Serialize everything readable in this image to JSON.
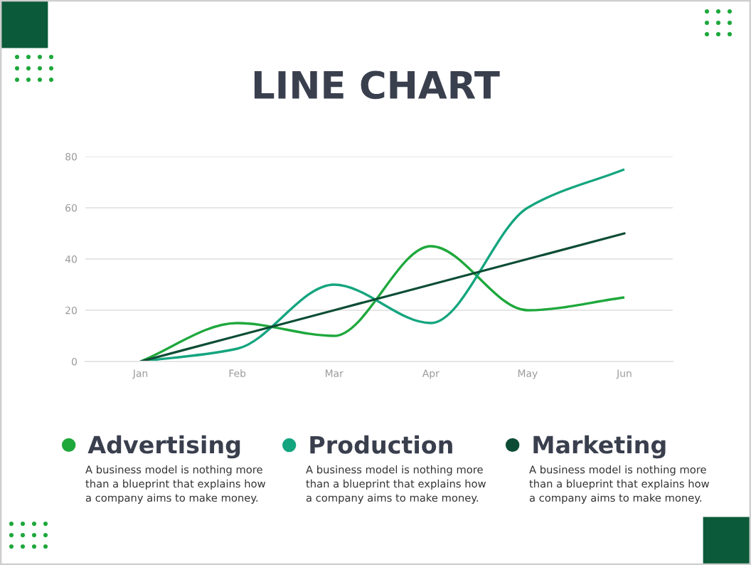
{
  "chart_data": {
    "type": "line",
    "title": "LINE CHART",
    "categories": [
      "Jan",
      "Feb",
      "Mar",
      "Apr",
      "May",
      "Jun"
    ],
    "series": [
      {
        "name": "Advertising",
        "color": "#1ea83c",
        "values": [
          0,
          15,
          10,
          45,
          20,
          25
        ]
      },
      {
        "name": "Production",
        "color": "#14a57f",
        "values": [
          0,
          5,
          30,
          15,
          60,
          75
        ]
      },
      {
        "name": "Marketing",
        "color": "#0d4d35",
        "values": [
          0,
          10,
          20,
          30,
          40,
          50
        ]
      }
    ],
    "ylim": [
      0,
      80
    ],
    "yticks": [
      0,
      20,
      40,
      60,
      80
    ],
    "grid": "y",
    "legend": "bottom",
    "marker": "none",
    "line_style": "solid",
    "annotations": [
      "A business model is nothing more\nthan a blueprint that explains how\na company aims to make money.",
      "A business model is nothing more\nthan a blueprint that explains how\na company aims to make money.",
      "A business model is nothing more\nthan a blueprint that explains how\na company aims to make money."
    ]
  }
}
